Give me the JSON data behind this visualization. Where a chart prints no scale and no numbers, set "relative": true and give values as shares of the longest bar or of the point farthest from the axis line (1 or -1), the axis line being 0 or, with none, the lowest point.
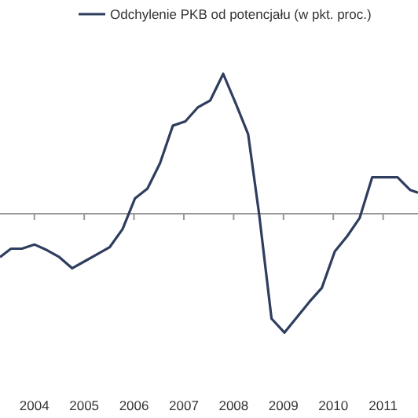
{
  "chart_data": {
    "type": "line",
    "relative": true,
    "legend": "top",
    "x": [
      2003.31,
      2003.53,
      2003.75,
      2004.0,
      2004.25,
      2004.5,
      2004.76,
      2005.01,
      2005.26,
      2005.51,
      2005.77,
      2006.02,
      2006.27,
      2006.52,
      2006.78,
      2007.03,
      2007.28,
      2007.53,
      2007.79,
      2008.04,
      2008.29,
      2008.51,
      2008.76,
      2009.02,
      2009.27,
      2009.52,
      2009.77,
      2010.03,
      2010.28,
      2010.53,
      2010.78,
      2011.03,
      2011.29,
      2011.54,
      2011.7
    ],
    "xlim": [
      2003.31,
      2011.7
    ],
    "xticks": [
      2004,
      2005,
      2006,
      2007,
      2008,
      2009,
      2010,
      2011
    ],
    "series": [
      {
        "name": "Odchylenie PKB od potencjału (w pkt. proc.)",
        "color": "#2f3d5f",
        "values": [
          -0.31,
          -0.25,
          -0.25,
          -0.22,
          -0.26,
          -0.31,
          -0.39,
          -0.34,
          -0.29,
          -0.24,
          -0.11,
          0.11,
          0.18,
          0.36,
          0.63,
          0.66,
          0.76,
          0.81,
          1.0,
          0.79,
          0.57,
          0,
          -0.75,
          -0.85,
          -0.74,
          -0.63,
          -0.53,
          -0.27,
          -0.16,
          -0.03,
          0.26,
          0.26,
          0.26,
          0.17,
          0.15
        ]
      }
    ]
  }
}
